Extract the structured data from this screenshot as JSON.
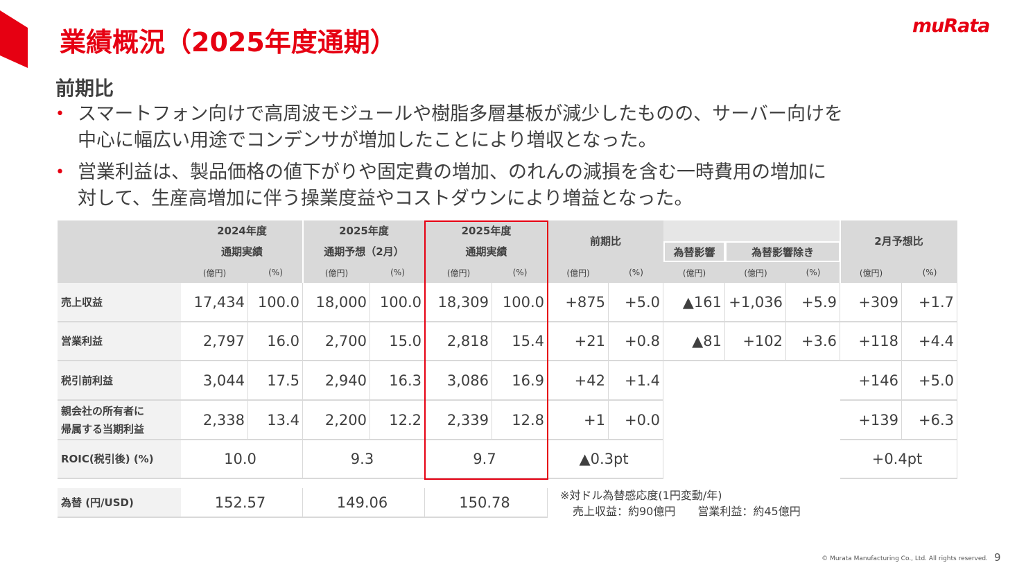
{
  "header": {
    "title": "業績概況（2025年度通期）",
    "logo": "muRata"
  },
  "subtitle": "前期比",
  "bullets": [
    [
      "スマートフォン向けで高周波モジュールや樹脂多層基板が減少したものの、サーバー向けを",
      "中心に幅広い用途でコンデンサが増加したことにより増収となった。"
    ],
    [
      "営業利益は、製品価格の値下がりや固定費の増加、のれんの減損を含む一時費用の増加に",
      "対して、生産高増加に伴う操業度益やコストダウンにより増益となった。"
    ]
  ],
  "table": {
    "headers": [
      [
        "2024年度",
        "通期実績"
      ],
      [
        "2025年度",
        "通期予想（2月）"
      ],
      [
        "2025年度",
        "通期実績"
      ],
      [
        "前期比"
      ],
      [
        "2月予想比"
      ]
    ],
    "sub_headers": [
      "為替影響",
      "為替影響除き"
    ],
    "units": [
      "(億円)",
      "(%)",
      "(億円)",
      "(%)",
      "(億円)",
      "(%)",
      "(億円)",
      "(%)",
      "(億円)",
      "(億円)",
      "(%)",
      "(億円)",
      "(%)"
    ],
    "rows": [
      {
        "label": "売上収益",
        "values": [
          "17,434",
          "100.0",
          "18,000",
          "100.0",
          "18,309",
          "100.0",
          "+875",
          "+5.0",
          "▲161",
          "+1,036",
          "+5.9",
          "+309",
          "+1.7"
        ]
      },
      {
        "label": "営業利益",
        "values": [
          "2,797",
          "16.0",
          "2,700",
          "15.0",
          "2,818",
          "15.4",
          "+21",
          "+0.8",
          "▲81",
          "+102",
          "+3.6",
          "+118",
          "+4.4"
        ]
      },
      {
        "label": "税引前利益",
        "values": [
          "3,044",
          "17.5",
          "2,940",
          "16.3",
          "3,086",
          "16.9",
          "+42",
          "+1.4",
          "+146",
          "+5.0"
        ]
      },
      {
        "label": [
          "親会社の所有者に",
          "帰属する当期利益"
        ],
        "values": [
          "2,338",
          "13.4",
          "2,200",
          "12.2",
          "2,339",
          "12.8",
          "+1",
          "+0.0",
          "+139",
          "+6.3"
        ]
      },
      {
        "label": "ROIC(税引後) (%)",
        "values": [
          "10.0",
          "9.3",
          "9.7",
          "▲0.3pt",
          "+0.4pt"
        ]
      },
      {
        "label": "為替 (円/USD)",
        "values": [
          "152.57",
          "149.06",
          "150.78"
        ]
      }
    ]
  },
  "note": [
    "※対ドル為替感応度(1円変動/年)",
    "売上収益：約90億円　　営業利益：約45億円"
  ],
  "footer": {
    "copyright": "© Murata Manufacturing Co., Ltd. All rights reserved.",
    "page": "9"
  }
}
